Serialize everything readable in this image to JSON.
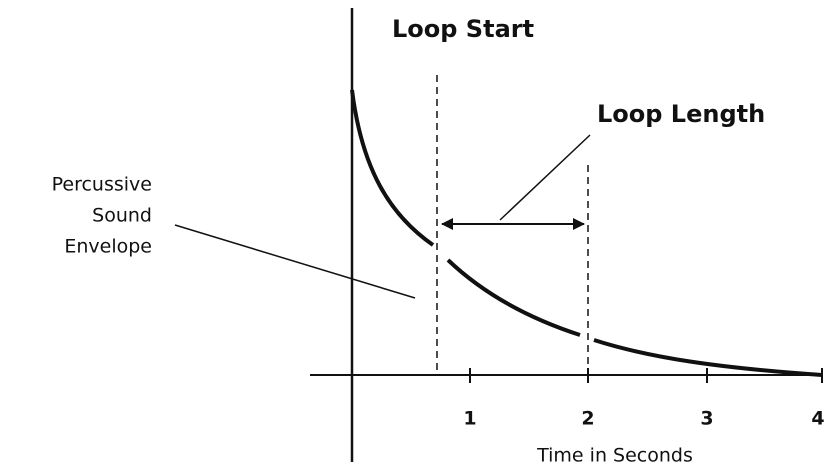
{
  "labels": {
    "loop_start": "Loop Start",
    "loop_length": "Loop Length",
    "envelope": [
      "Percussive",
      "Sound",
      "Envelope"
    ]
  },
  "axis": {
    "title": "Time in Seconds",
    "ticks": [
      "1",
      "2",
      "3",
      "4"
    ]
  }
}
